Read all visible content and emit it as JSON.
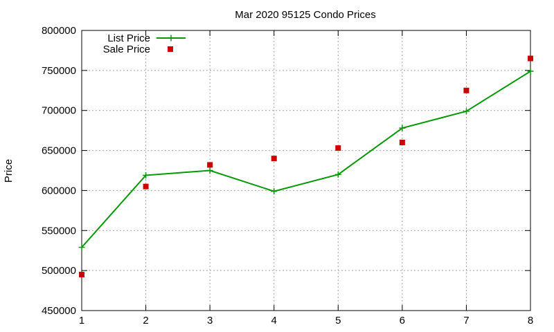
{
  "chart_data": {
    "type": "line",
    "title": "Mar 2020 95125 Condo Prices",
    "xlabel": "",
    "ylabel": "Price",
    "xlim": [
      1,
      8
    ],
    "ylim": [
      450000,
      800000
    ],
    "x_ticks": [
      "1",
      "2",
      "3",
      "4",
      "5",
      "6",
      "7",
      "8"
    ],
    "y_ticks": [
      "450000",
      "500000",
      "550000",
      "600000",
      "650000",
      "700000",
      "750000",
      "800000"
    ],
    "grid": true,
    "legend_position": "top-left",
    "x": [
      1,
      2,
      3,
      4,
      5,
      6,
      7,
      8
    ],
    "series": [
      {
        "name": "List Price",
        "style": "line-with-plus-markers",
        "color": "#009900",
        "values": [
          529000,
          619000,
          625000,
          599000,
          620000,
          678000,
          699000,
          749000
        ]
      },
      {
        "name": "Sale Price",
        "style": "square-markers",
        "color": "#cc0000",
        "values": [
          495000,
          605000,
          632000,
          640000,
          653000,
          660000,
          725000,
          765000
        ]
      }
    ]
  }
}
